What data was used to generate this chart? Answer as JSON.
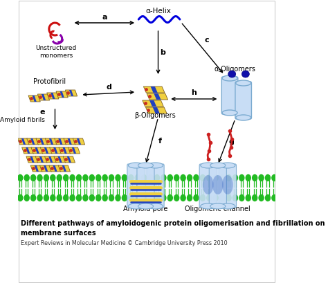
{
  "title_line1": "Different pathways of amyloidogenic protein oligomerisation and fibrillation on",
  "title_line2": "membrane surfaces",
  "subtitle": "Expert Reviews in Molecular Medicine © Cambridge University Press 2010",
  "label_a": "a",
  "label_b": "b",
  "label_c": "c",
  "label_d": "d",
  "label_e": "e",
  "label_f": "f",
  "label_g": "g",
  "label_h": "h",
  "helix_label": "α-Helix",
  "unstructured_label": "Unstructured\nmonomers",
  "protofibril_label": "Protofibril",
  "beta_oligo_label": "β-Oligomers",
  "alpha_oligo_label": "α-Oligomers",
  "amyloid_fibrils_label": "Amyloid fibrils",
  "amyloid_pore_label": "Amyloid pore",
  "oligomeric_channel_label": "Oligomeric channel",
  "membrane_green": "#22bb22",
  "cylinder_fill": "#c8ddf5",
  "cylinder_edge": "#7aaad0",
  "helix_blue": "#0000dd",
  "fibril_yellow": "#f0d040",
  "fibril_blue": "#2040c0",
  "fibril_red": "#c83020",
  "fibril_dark": "#a06820",
  "alpha_blue_dark": "#1010aa",
  "oligo_channel_blue": "#3060c0",
  "red_protein": "#cc2020"
}
